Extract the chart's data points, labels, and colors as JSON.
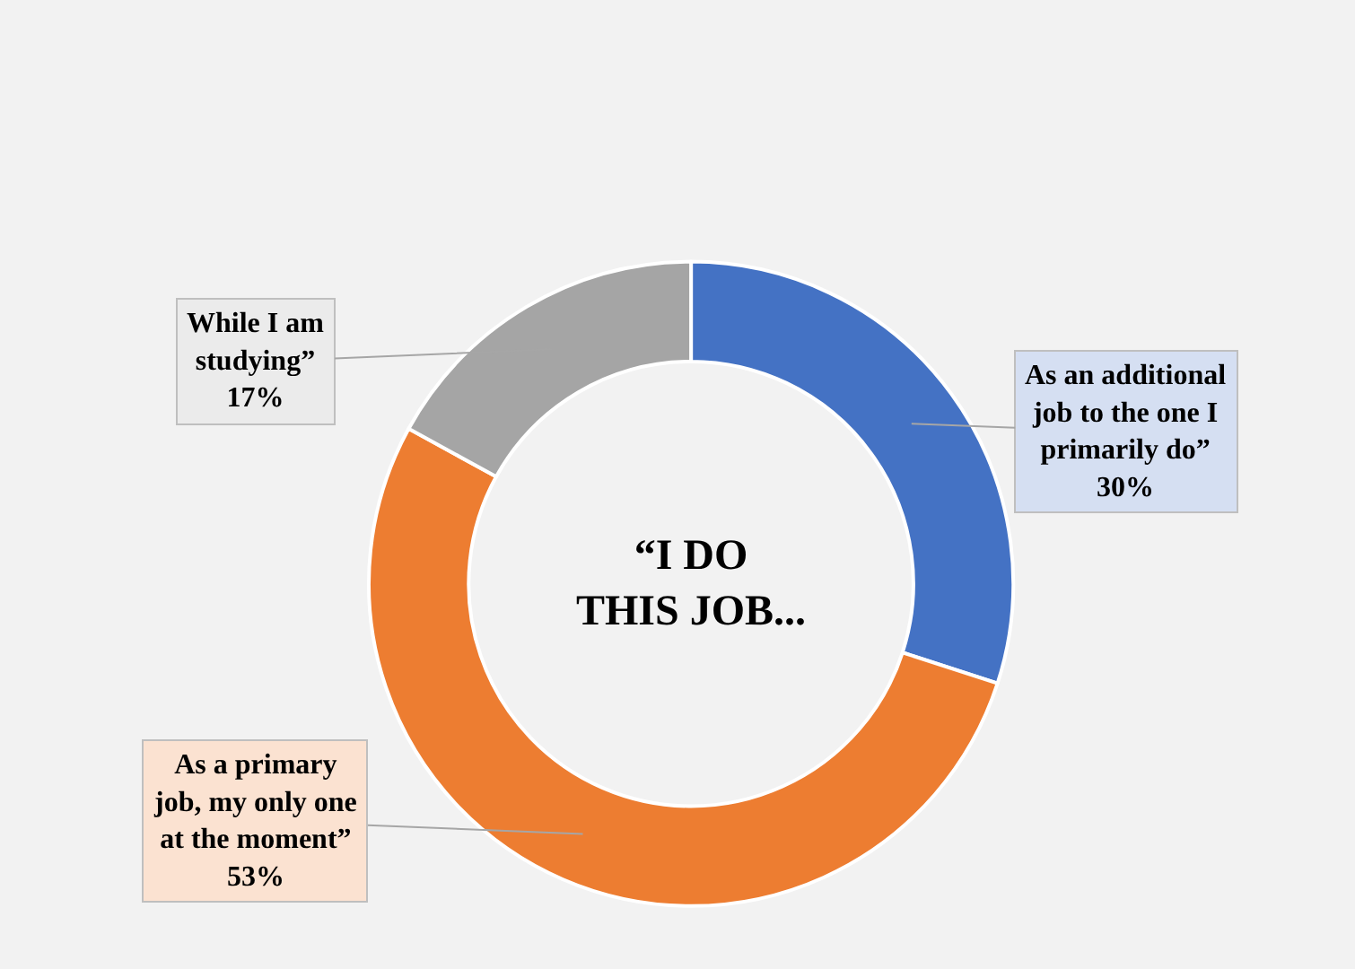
{
  "chart_data": {
    "type": "donut",
    "title": "“I DO THIS JOB...",
    "categories": [
      "As an additional job to the one I primarily do”",
      "As a primary job, my only one at the moment”",
      "While I am studying”"
    ],
    "values": [
      30,
      53,
      17
    ],
    "value_labels": [
      "30%",
      "53%",
      "17%"
    ],
    "colors": [
      "#4472c4",
      "#ed7d31",
      "#a5a5a5"
    ],
    "legend": false
  }
}
